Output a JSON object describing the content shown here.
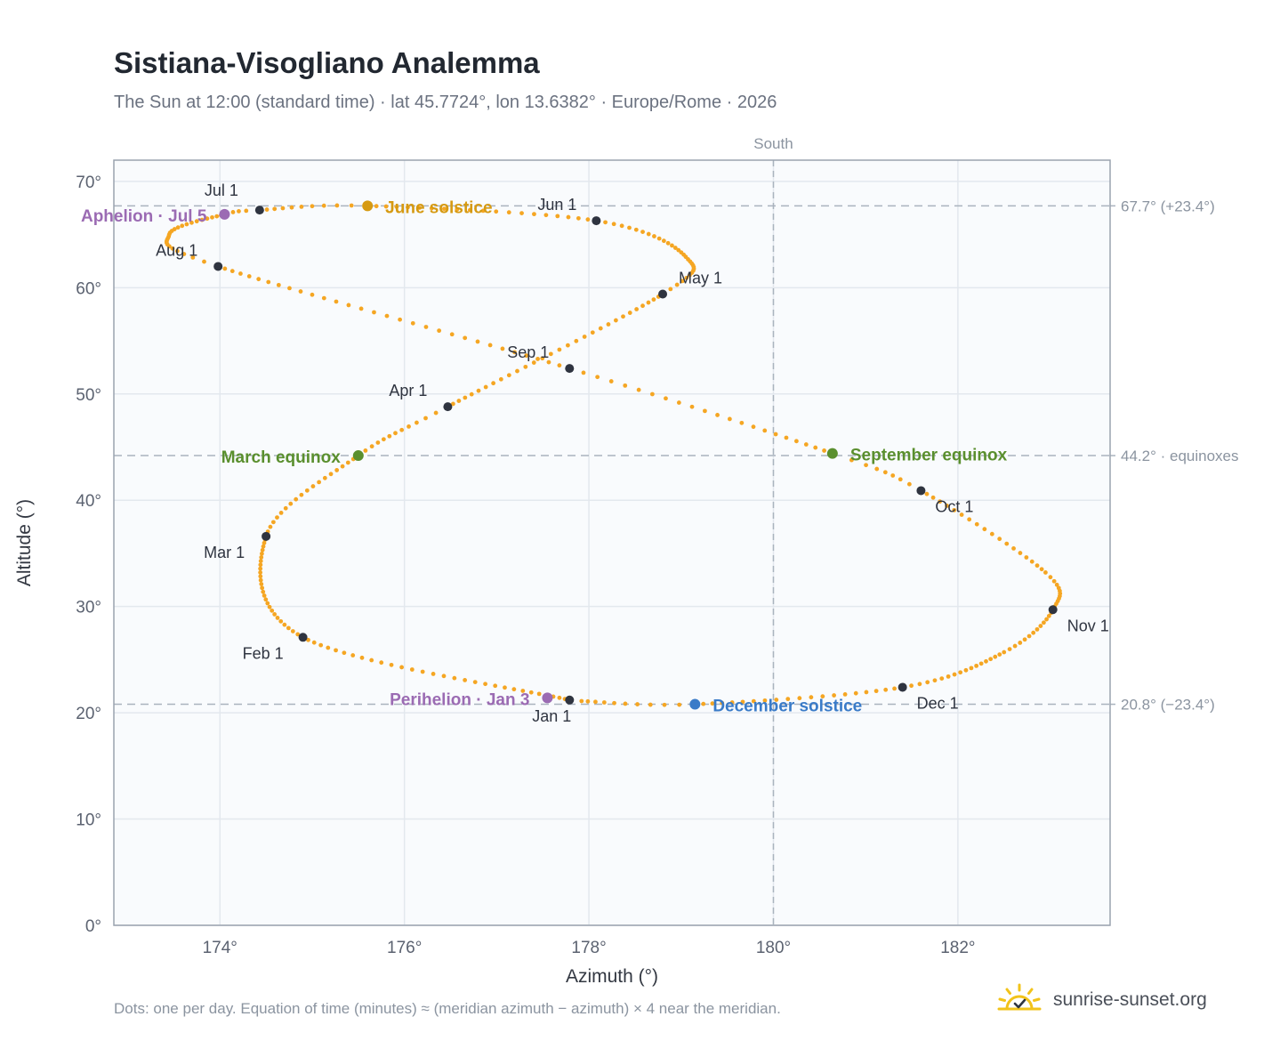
{
  "title": "Sistiana-Visogliano Analemma",
  "subtitle": "The Sun at 12:00 (standard time) · lat 45.7724°, lon 13.6382° · Europe/Rome · 2026",
  "footnote": "Dots: one per day. Equation of time (minutes) ≈ (meridian azimuth − azimuth) × 4 near the meridian.",
  "brand": {
    "text": "sunrise-sunset.org",
    "icon": "sun-check-icon"
  },
  "colors": {
    "path": "#f5a623",
    "month": "#2f3440",
    "solstice_june": "#d69a12",
    "equinox": "#5a8f2e",
    "solstice_dec": "#3a7bc8",
    "perihelion": "#9b6bb3",
    "grid": "#e3e8ee",
    "plot_bg": "#f9fbfd",
    "ref_line": "#aab3be"
  },
  "chart_data": {
    "type": "scatter",
    "title": "Sistiana-Visogliano Analemma",
    "xlabel": "Azimuth (°)",
    "ylabel": "Altitude (°)",
    "xlim": [
      172.85,
      183.65
    ],
    "ylim": [
      0,
      72
    ],
    "x_ticks": [
      174,
      176,
      178,
      180,
      182
    ],
    "y_ticks": [
      0,
      10,
      20,
      30,
      40,
      50,
      60,
      70
    ],
    "grid": true,
    "vertical_ref": {
      "x": 180,
      "label": "South"
    },
    "horizontal_refs": [
      {
        "y": 67.7,
        "label": "67.7° (+23.4°)"
      },
      {
        "y": 44.2,
        "label": "44.2° · equinoxes"
      },
      {
        "y": 20.8,
        "label": "20.8° (−23.4°)"
      }
    ],
    "daily_path": [
      {
        "day": 1,
        "az": 177.79,
        "alt": 21.2
      },
      {
        "day": 32,
        "az": 174.9,
        "alt": 27.1
      },
      {
        "day": 60,
        "az": 174.5,
        "alt": 36.6
      },
      {
        "day": 79,
        "az": 175.5,
        "alt": 44.2
      },
      {
        "day": 91,
        "az": 176.47,
        "alt": 48.8
      },
      {
        "day": 121,
        "az": 178.8,
        "alt": 59.4
      },
      {
        "day": 135,
        "az": 179.05,
        "alt": 62.9
      },
      {
        "day": 152,
        "az": 178.08,
        "alt": 66.3
      },
      {
        "day": 172,
        "az": 175.6,
        "alt": 67.7
      },
      {
        "day": 182,
        "az": 174.43,
        "alt": 67.3
      },
      {
        "day": 186,
        "az": 174.05,
        "alt": 66.9
      },
      {
        "day": 200,
        "az": 173.45,
        "alt": 65.0
      },
      {
        "day": 213,
        "az": 173.98,
        "alt": 62.0
      },
      {
        "day": 244,
        "az": 177.79,
        "alt": 52.4
      },
      {
        "day": 266,
        "az": 180.64,
        "alt": 44.4
      },
      {
        "day": 274,
        "az": 181.6,
        "alt": 40.9
      },
      {
        "day": 293,
        "az": 182.95,
        "alt": 33.2
      },
      {
        "day": 305,
        "az": 183.03,
        "alt": 29.7
      },
      {
        "day": 318,
        "az": 182.5,
        "alt": 25.7
      },
      {
        "day": 335,
        "az": 181.4,
        "alt": 22.4
      },
      {
        "day": 355,
        "az": 179.15,
        "alt": 20.8
      },
      {
        "day": 365,
        "az": 177.92,
        "alt": 21.1
      }
    ],
    "month_markers": [
      {
        "label": "Jan 1",
        "az": 177.79,
        "alt": 21.2
      },
      {
        "label": "Feb 1",
        "az": 174.9,
        "alt": 27.1
      },
      {
        "label": "Mar 1",
        "az": 174.5,
        "alt": 36.6
      },
      {
        "label": "Apr 1",
        "az": 176.47,
        "alt": 48.8
      },
      {
        "label": "May 1",
        "az": 178.8,
        "alt": 59.4
      },
      {
        "label": "Jun 1",
        "az": 178.08,
        "alt": 66.3
      },
      {
        "label": "Jul 1",
        "az": 174.43,
        "alt": 67.3
      },
      {
        "label": "Aug 1",
        "az": 173.98,
        "alt": 62.0
      },
      {
        "label": "Sep 1",
        "az": 177.79,
        "alt": 52.4
      },
      {
        "label": "Oct 1",
        "az": 181.6,
        "alt": 40.9
      },
      {
        "label": "Nov 1",
        "az": 183.03,
        "alt": 29.7
      },
      {
        "label": "Dec 1",
        "az": 181.4,
        "alt": 22.4
      }
    ],
    "events": [
      {
        "label": "March equinox",
        "az": 175.5,
        "alt": 44.2,
        "kind": "equinox"
      },
      {
        "label": "June solstice",
        "az": 175.6,
        "alt": 67.7,
        "kind": "solstice_june"
      },
      {
        "label": "September equinox",
        "az": 180.64,
        "alt": 44.4,
        "kind": "equinox"
      },
      {
        "label": "December solstice",
        "az": 179.15,
        "alt": 20.8,
        "kind": "solstice_dec"
      },
      {
        "label": "Perihelion · Jan 3",
        "az": 177.55,
        "alt": 21.4,
        "kind": "perihelion"
      },
      {
        "label": "Aphelion · Jul 5",
        "az": 174.05,
        "alt": 66.9,
        "kind": "perihelion"
      }
    ]
  }
}
